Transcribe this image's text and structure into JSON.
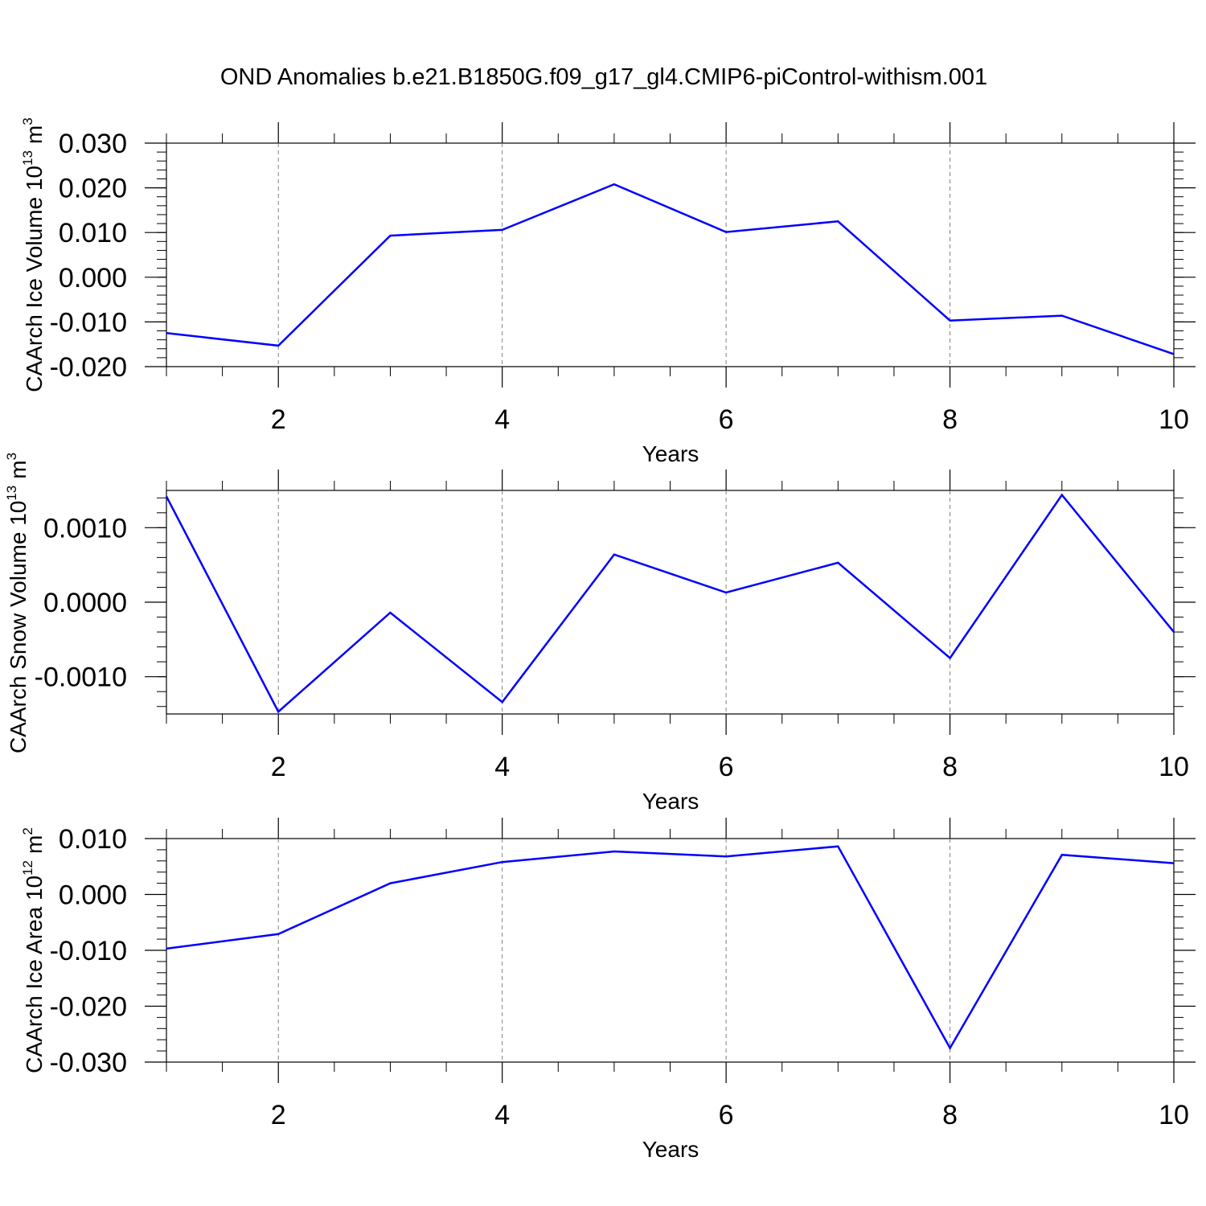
{
  "title": "OND Anomalies b.e21.B1850G.f09_g17_gl4.CMIP6-piControl-withism.001",
  "colors": {
    "series": "#0000ff",
    "axis": "#000000",
    "grid": "#808080"
  },
  "chart_data": [
    {
      "type": "line",
      "xlabel": "Years",
      "ylabel": {
        "text": "CAArch Ice Volume 10",
        "exponent": "13",
        "unit": "m",
        "unit_exponent": "3"
      },
      "xlim": [
        1,
        10
      ],
      "ylim": [
        -0.02,
        0.03
      ],
      "xticks": [
        "2",
        "4",
        "6",
        "8",
        "10"
      ],
      "yticks": [
        "-0.020",
        "-0.010",
        "0.000",
        "0.010",
        "0.020",
        "0.030"
      ],
      "grid": "vertical dashed at major x ticks",
      "series": [
        {
          "x": [
            1,
            2,
            3,
            4,
            5,
            6,
            7,
            8,
            9,
            10
          ],
          "values": [
            -0.0125,
            -0.0153,
            0.0093,
            0.0106,
            0.0208,
            0.0101,
            0.0125,
            -0.0097,
            -0.0086,
            -0.0172
          ]
        }
      ]
    },
    {
      "type": "line",
      "xlabel": "Years",
      "ylabel": {
        "text": "CAArch Snow Volume 10",
        "exponent": "13",
        "unit": "m",
        "unit_exponent": "3"
      },
      "xlim": [
        1,
        10
      ],
      "ylim": [
        -0.0015,
        0.0015
      ],
      "xticks": [
        "2",
        "4",
        "6",
        "8",
        "10"
      ],
      "yticks": [
        "-0.0010",
        "0.0000",
        "0.0010"
      ],
      "grid": "vertical dashed at major x ticks",
      "series": [
        {
          "x": [
            1,
            2,
            3,
            4,
            5,
            6,
            7,
            8,
            9,
            10
          ],
          "values": [
            0.00142,
            -0.00147,
            -0.00014,
            -0.00134,
            0.00064,
            0.00013,
            0.00053,
            -0.00075,
            0.00144,
            -0.0004
          ]
        }
      ]
    },
    {
      "type": "line",
      "xlabel": "Years",
      "ylabel": {
        "text": "CAArch Ice Area 10",
        "exponent": "12",
        "unit": "m",
        "unit_exponent": "2"
      },
      "xlim": [
        1,
        10
      ],
      "ylim": [
        -0.03,
        0.01
      ],
      "xticks": [
        "2",
        "4",
        "6",
        "8",
        "10"
      ],
      "yticks": [
        "-0.030",
        "-0.020",
        "-0.010",
        "0.000",
        "0.010"
      ],
      "grid": "vertical dashed at major x ticks",
      "series": [
        {
          "x": [
            1,
            2,
            3,
            4,
            5,
            6,
            7,
            8,
            9,
            10
          ],
          "values": [
            -0.0097,
            -0.0071,
            0.002,
            0.0058,
            0.0077,
            0.0068,
            0.0086,
            -0.0275,
            0.0071,
            0.0056
          ]
        }
      ]
    }
  ]
}
